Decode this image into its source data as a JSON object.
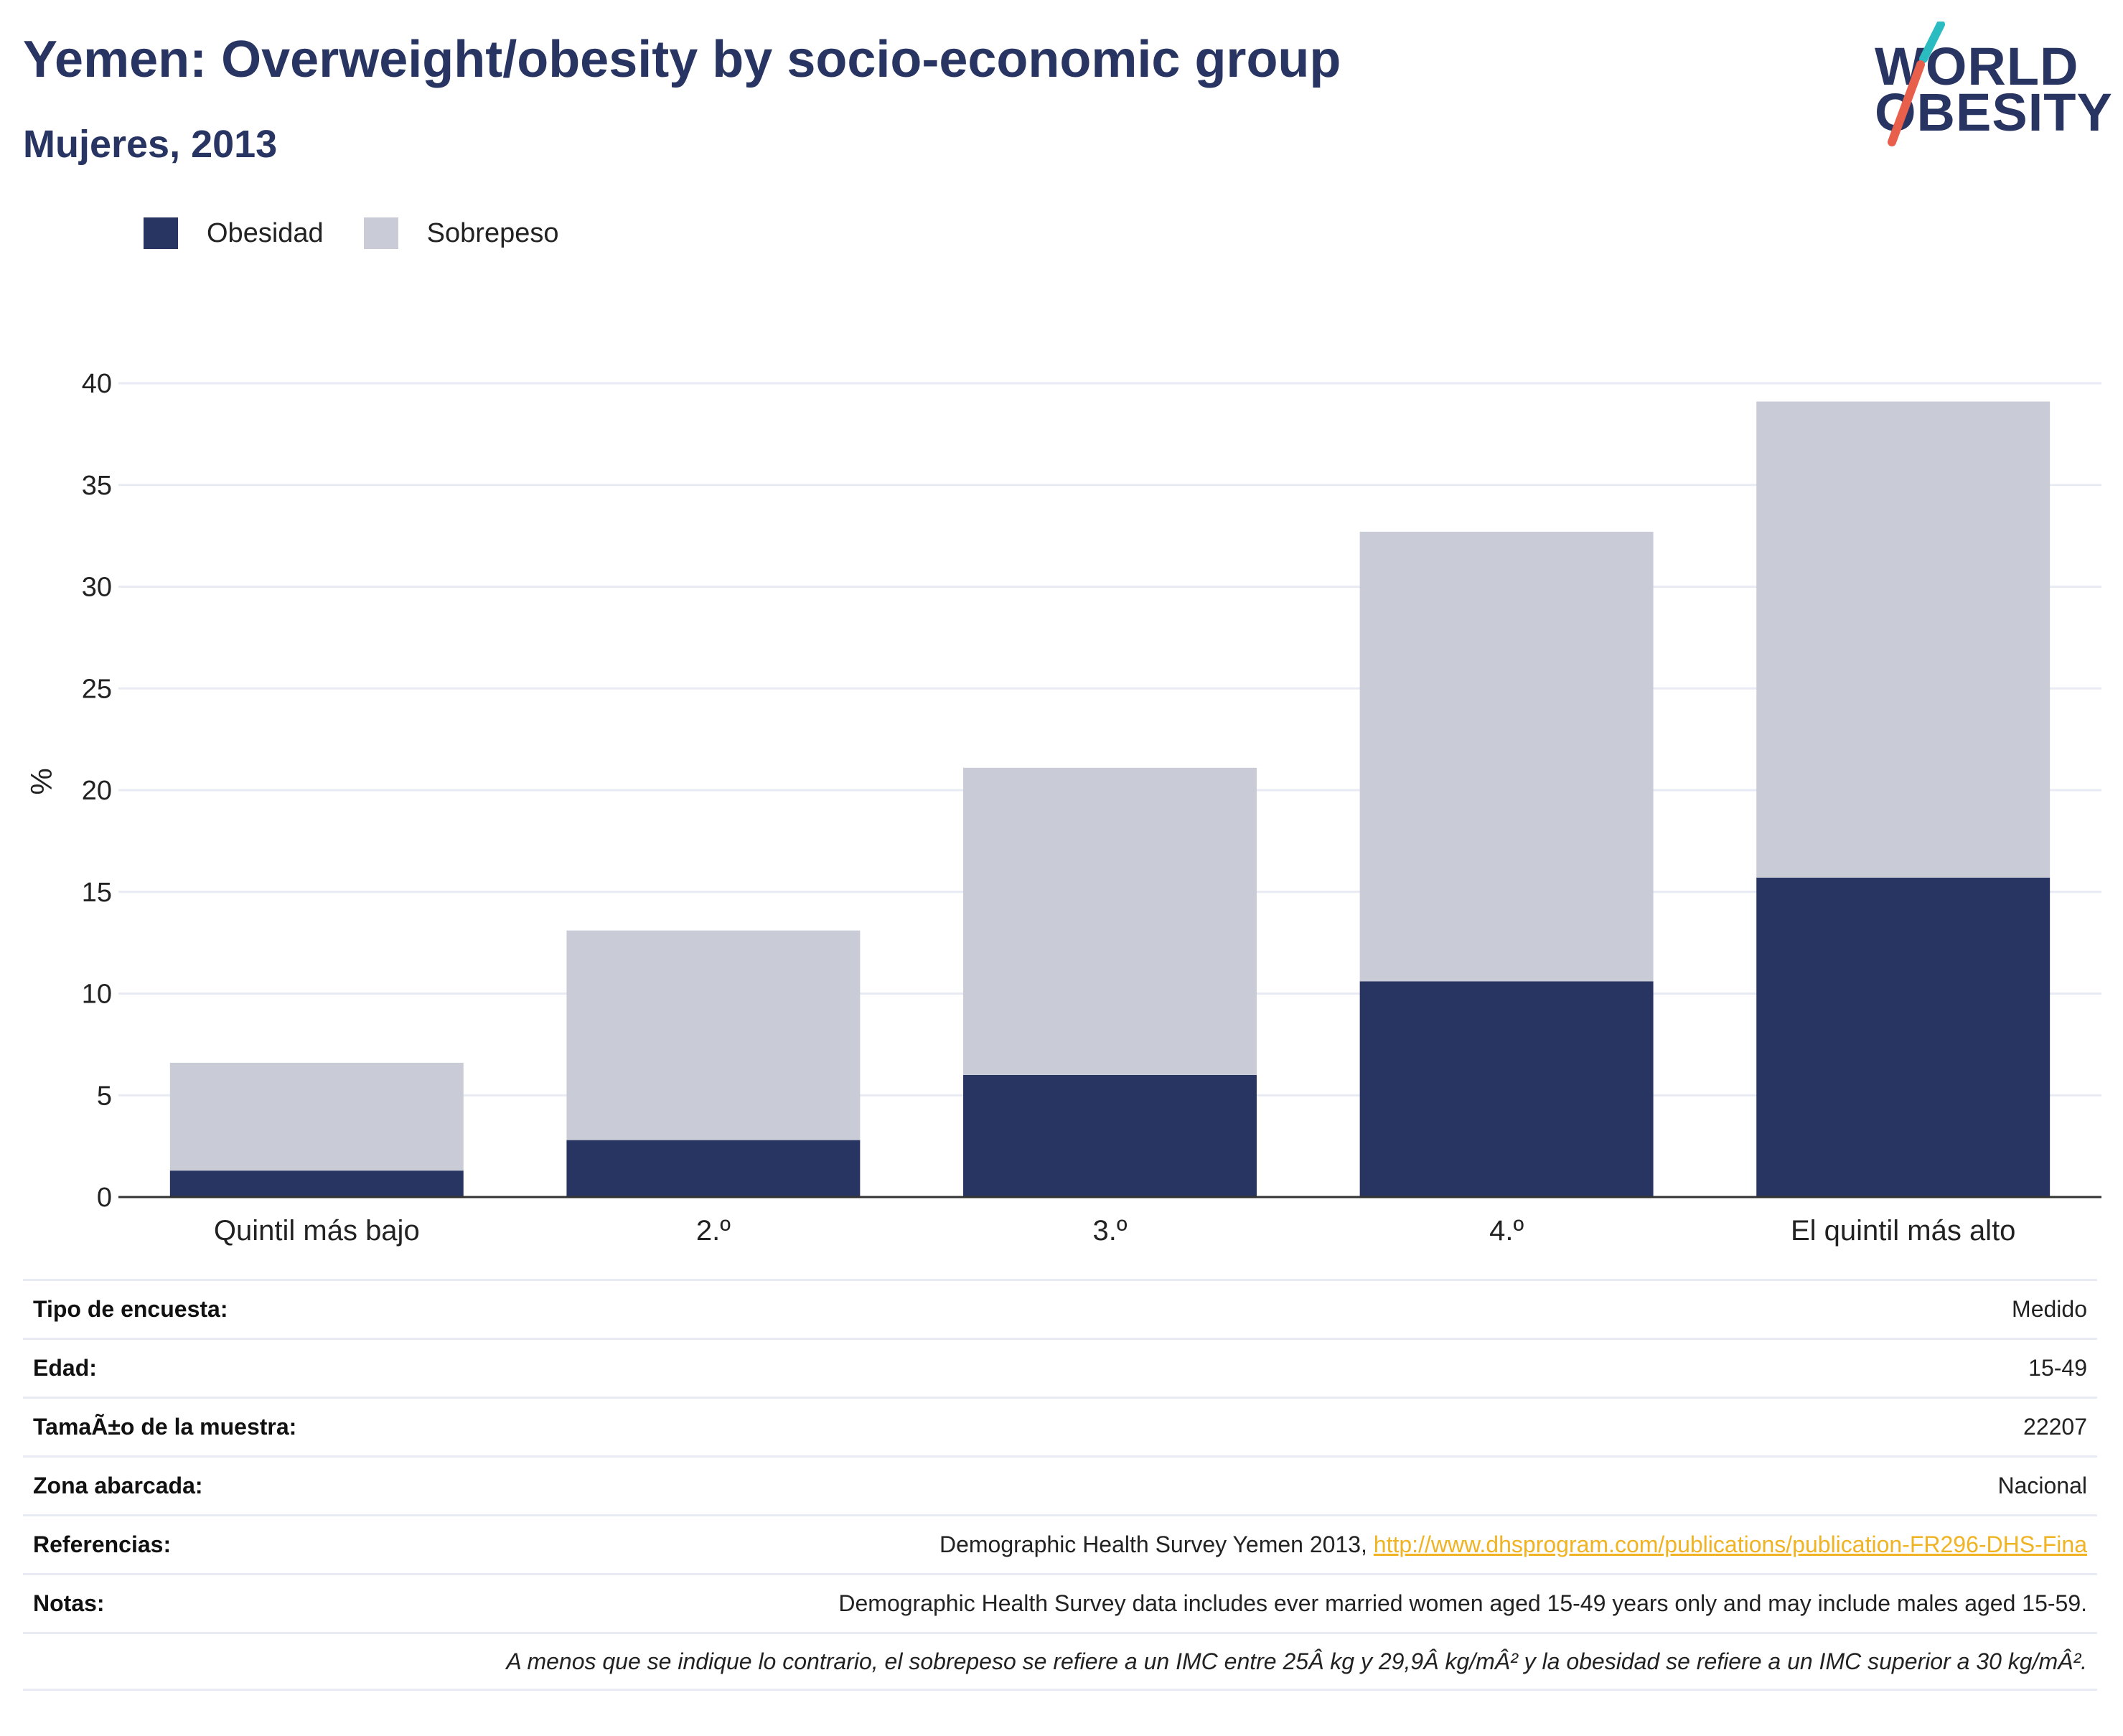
{
  "header": {
    "title": "Yemen: Overweight/obesity by socio-economic group",
    "subtitle": "Mujeres, 2013"
  },
  "logo": {
    "line1": "WORLD",
    "line2": "OBESITY",
    "accent_colors": [
      "#2bbcc1",
      "#e8604c"
    ]
  },
  "colors": {
    "obesity": "#283462",
    "overweight": "#c9cbd6",
    "grid": "#e8ebf4",
    "axis": "#333333",
    "link": "#f0b323"
  },
  "chart_data": {
    "type": "bar",
    "stacked": true,
    "categories": [
      "Quintil más bajo",
      "2.º",
      "3.º",
      "4.º",
      "El quintil más alto"
    ],
    "series": [
      {
        "name": "Obesidad",
        "values": [
          1.3,
          2.8,
          6.0,
          10.6,
          15.7
        ]
      },
      {
        "name": "Sobrepeso",
        "values": [
          5.3,
          10.3,
          15.1,
          22.1,
          23.4
        ]
      }
    ],
    "ylabel": "%",
    "ylim": [
      0,
      40
    ],
    "yticks": [
      0,
      5,
      10,
      15,
      20,
      25,
      30,
      35,
      40
    ],
    "grid": true,
    "legend_position": "top-left"
  },
  "info": [
    {
      "label": "Tipo de encuesta:",
      "value": "Medido"
    },
    {
      "label": "Edad:",
      "value": "15-49"
    },
    {
      "label": "TamaÃ±o de la muestra:",
      "value": "22207"
    },
    {
      "label": "Zona abarcada:",
      "value": "Nacional"
    },
    {
      "label": "Referencias:",
      "value": "Demographic Health Survey Yemen 2013, ",
      "link": "http://www.dhsprogram.com/publications/publication-FR296-DHS-Fina"
    },
    {
      "label": "Notas:",
      "value": "Demographic Health Survey data includes ever married women aged 15-49 years only and may include males aged 15-59."
    },
    {
      "label": "",
      "value": "A menos que se indique lo contrario, el sobrepeso se refiere a un IMC entre 25Â kg y 29,9Â kg/mÂ² y la obesidad se refiere a un IMC superior a 30 kg/mÂ²."
    }
  ]
}
